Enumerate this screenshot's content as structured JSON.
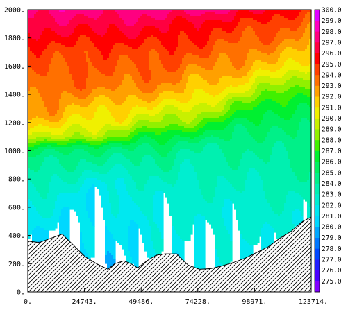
{
  "chart_data": {
    "type": "heatmap",
    "subtype": "filled-contour-section",
    "title": "",
    "xlabel": "",
    "ylabel": "",
    "xlim": [
      0,
      123714
    ],
    "ylim": [
      0,
      2000
    ],
    "x_ticks": [
      "0.",
      "24743.",
      "49486.",
      "74228.",
      "98971.",
      "123714."
    ],
    "y_ticks": [
      "0.",
      "200.",
      "400.",
      "600.",
      "800.",
      "1000.",
      "1200.",
      "1400.",
      "1600.",
      "1800.",
      "2000."
    ],
    "colorbar": {
      "range": [
        274.5,
        300.5
      ],
      "labels": [
        "275.0",
        "276.0",
        "277.0",
        "278.0",
        "279.0",
        "280.0",
        "281.0",
        "282.0",
        "283.0",
        "284.0",
        "285.0",
        "286.0",
        "287.0",
        "288.0",
        "289.0",
        "290.0",
        "291.0",
        "292.0",
        "293.0",
        "294.0",
        "295.0",
        "296.0",
        "297.0",
        "298.0",
        "299.0",
        "300.0"
      ],
      "colors": [
        "#8000ff",
        "#4a00ff",
        "#2020ff",
        "#0048ff",
        "#0078ff",
        "#00a8ff",
        "#00d8ff",
        "#00e8f0",
        "#00eed0",
        "#00f0b0",
        "#00f088",
        "#00f060",
        "#00f030",
        "#40f000",
        "#90f000",
        "#c8f000",
        "#f0f000",
        "#ffd000",
        "#ffa000",
        "#ff7000",
        "#ff4000",
        "#ff0000",
        "#ff0040",
        "#ff0080",
        "#ff00c0",
        "#e000ff"
      ]
    },
    "field": {
      "x": [
        0,
        10000,
        20000,
        30000,
        40000,
        50000,
        60000,
        70000,
        80000,
        90000,
        100000,
        110000,
        123714
      ],
      "profiles": [
        {
          "z": [
            0,
            350,
            480,
            640,
            950,
            1010,
            1060,
            1100,
            1150,
            1250,
            1400,
            1700,
            1900,
            2000
          ],
          "t": [
            281,
            281,
            282,
            283,
            285,
            286,
            288,
            289,
            291,
            293,
            294,
            295,
            297,
            298
          ]
        },
        {
          "z": [
            0,
            400,
            550,
            700,
            950,
            1010,
            1060,
            1100,
            1150,
            1250,
            1450,
            1700,
            1900,
            2000
          ],
          "t": [
            281,
            281,
            282,
            283,
            285,
            286,
            288,
            290,
            291,
            293,
            294,
            295,
            297,
            298
          ]
        },
        {
          "z": [
            0,
            330,
            700,
            780,
            960,
            1020,
            1060,
            1110,
            1170,
            1280,
            1450,
            1700,
            1900,
            2000
          ],
          "t": [
            281,
            281,
            282,
            283,
            285,
            286,
            288,
            290,
            291,
            292,
            294,
            295,
            297,
            298
          ]
        },
        {
          "z": [
            0,
            330,
            760,
            820,
            970,
            1030,
            1070,
            1120,
            1180,
            1300,
            1450,
            1700,
            1900,
            2000
          ],
          "t": [
            281,
            281,
            282,
            283,
            285,
            286,
            288,
            290,
            291,
            292,
            294,
            295,
            297,
            298
          ]
        },
        {
          "z": [
            0,
            160,
            600,
            800,
            980,
            1040,
            1080,
            1140,
            1200,
            1320,
            1500,
            1700,
            1900,
            2000
          ],
          "t": [
            281,
            281,
            282,
            283,
            285,
            286,
            288,
            289,
            291,
            292,
            294,
            295,
            297,
            298
          ]
        },
        {
          "z": [
            0,
            180,
            400,
            780,
            980,
            1040,
            1100,
            1160,
            1230,
            1340,
            1500,
            1700,
            1900,
            2000
          ],
          "t": [
            281,
            281,
            282,
            283,
            285,
            286,
            287,
            289,
            290,
            292,
            294,
            295,
            297,
            298
          ]
        },
        {
          "z": [
            0,
            280,
            700,
            980,
            1050,
            1120,
            1180,
            1250,
            1360,
            1500,
            1700,
            1900,
            2000
          ],
          "t": [
            282,
            282,
            283,
            285,
            286,
            287,
            289,
            290,
            292,
            294,
            295,
            297,
            298
          ]
        },
        {
          "z": [
            0,
            280,
            680,
            960,
            1060,
            1130,
            1200,
            1280,
            1380,
            1520,
            1720,
            1900,
            2000
          ],
          "t": [
            282,
            282,
            283,
            284,
            285,
            287,
            289,
            290,
            292,
            293,
            295,
            296,
            298
          ]
        },
        {
          "z": [
            0,
            180,
            650,
            940,
            1050,
            1150,
            1220,
            1300,
            1400,
            1540,
            1720,
            1900,
            2000
          ],
          "t": [
            282,
            282,
            283,
            284,
            285,
            287,
            288,
            290,
            291,
            293,
            295,
            296,
            298
          ]
        },
        {
          "z": [
            0,
            200,
            620,
            900,
            1060,
            1180,
            1260,
            1340,
            1420,
            1560,
            1740,
            1900,
            2000
          ],
          "t": [
            282,
            282,
            283,
            284,
            285,
            286,
            288,
            289,
            291,
            293,
            294,
            296,
            297
          ]
        },
        {
          "z": [
            0,
            300,
            580,
            860,
            1080,
            1200,
            1300,
            1380,
            1460,
            1580,
            1760,
            1900,
            2000
          ],
          "t": [
            282,
            282,
            283,
            284,
            285,
            286,
            287,
            289,
            290,
            292,
            294,
            295,
            297
          ]
        },
        {
          "z": [
            0,
            380,
            520,
            800,
            1050,
            1220,
            1340,
            1420,
            1500,
            1600,
            1780,
            1900,
            2000
          ],
          "t": [
            282,
            283,
            283,
            284,
            285,
            286,
            287,
            288,
            290,
            292,
            294,
            295,
            296
          ]
        },
        {
          "z": [
            0,
            530,
            760,
            1000,
            1200,
            1360,
            1440,
            1520,
            1620,
            1800,
            1900,
            2000
          ],
          "t": [
            283,
            283,
            284,
            285,
            286,
            287,
            288,
            289,
            291,
            293,
            294,
            295
          ]
        }
      ]
    },
    "terrain": {
      "x": [
        0,
        5000,
        10000,
        15000,
        20000,
        25000,
        30000,
        35000,
        38000,
        42000,
        45000,
        48000,
        52000,
        56000,
        60000,
        65000,
        70000,
        75000,
        80000,
        85000,
        90000,
        95000,
        100000,
        105000,
        110000,
        115000,
        120000,
        123714
      ],
      "z": [
        360,
        350,
        380,
        410,
        330,
        250,
        200,
        160,
        200,
        220,
        200,
        170,
        220,
        260,
        270,
        270,
        190,
        160,
        165,
        185,
        210,
        240,
        280,
        320,
        380,
        430,
        500,
        530
      ]
    }
  }
}
